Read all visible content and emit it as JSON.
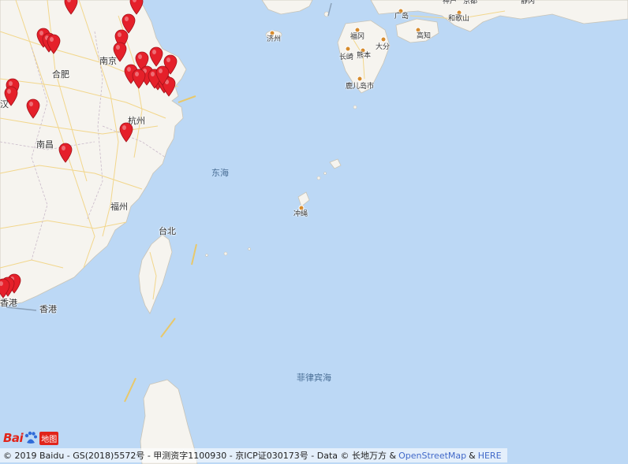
{
  "map": {
    "colors": {
      "sea": "#bcd8f5",
      "land": "#f6f4ef",
      "road": "#f2d68b",
      "border": "#c9b9c9",
      "pin": "#e5202a",
      "city_dot": "#d68a2b"
    }
  },
  "labels": {
    "hefei": "合肥",
    "nanjing": "南京",
    "hangzhou": "杭州",
    "nanchang": "南昌",
    "fuzhou": "福州",
    "taibei": "台北",
    "xianggang": "香港",
    "xianggang2": "香港",
    "wuhan": "汉",
    "jeju": "济州",
    "fukuoka": "福冈",
    "nagasaki": "长崎",
    "kumamoto": "熊本",
    "oita": "大分",
    "kagoshima": "鹿儿岛市",
    "hiroshima": "广岛",
    "kochi": "高知",
    "kobe": "神户",
    "kyoto": "京都",
    "wakayama": "和歌山",
    "shizuoka": "静冈",
    "okinawa": "冲绳",
    "east_china_sea": "东海",
    "philippine_sea": "菲律宾海"
  },
  "icons": {
    "marker": "map-marker-icon",
    "logo_paw": "baidu-paw-icon"
  },
  "logo": {
    "bai": "Bai",
    "ditu": "地图"
  },
  "copyright": {
    "text": "© 2019 Baidu - GS(2018)5572号 - 甲测资字1100930 - 京ICP证030173号 - Data © 长地万方 &",
    "osm": "OpenStreetMap",
    "amp": "&",
    "here": "HERE"
  }
}
